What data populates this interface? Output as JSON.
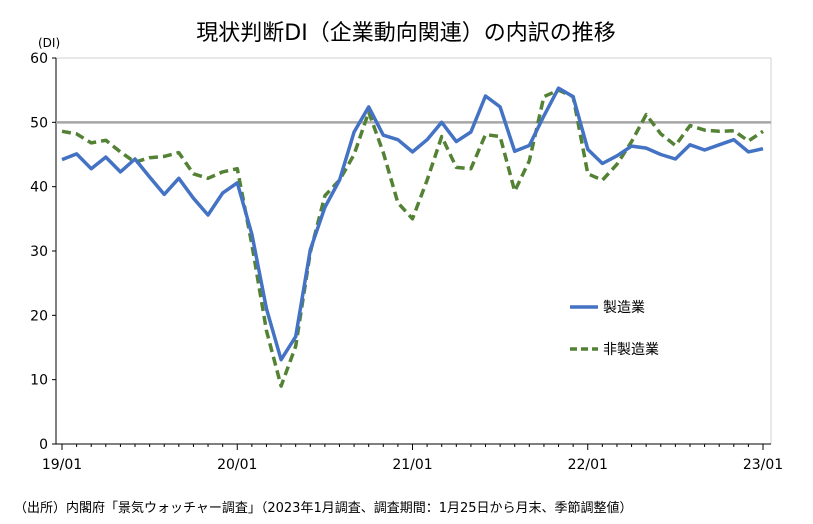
{
  "chart_data": {
    "type": "line",
    "title": "現状判断DI（企業動向関連）の内訳の推移",
    "y_unit": "(DI)",
    "ylim": [
      0,
      60
    ],
    "yticks": [
      0,
      10,
      20,
      30,
      40,
      50,
      60
    ],
    "x_tick_labels": [
      "19/01",
      "20/01",
      "21/01",
      "22/01",
      "23/01"
    ],
    "x_tick_index": [
      0,
      12,
      24,
      36,
      48
    ],
    "reference_line": 50,
    "source": "（出所）内閣府「景気ウォッチャー調査」（2023年1月調査、調査期間：1月25日から月末、季節調整値）",
    "series": [
      {
        "name": "製造業",
        "color": "#4472C4",
        "style": "solid",
        "values": [
          44.2,
          45.1,
          42.8,
          44.6,
          42.3,
          44.3,
          41.5,
          38.8,
          41.3,
          38.2,
          35.6,
          39.0,
          40.6,
          32.6,
          21.0,
          13.1,
          16.7,
          30.2,
          36.8,
          41.0,
          48.5,
          52.4,
          48.0,
          47.3,
          45.4,
          47.3,
          50.0,
          47.0,
          48.5,
          54.1,
          52.4,
          45.5,
          46.4,
          51.0,
          55.3,
          54.0,
          45.8,
          43.6,
          44.8,
          46.3,
          46.0,
          45.0,
          44.3,
          46.5,
          45.7,
          46.5,
          47.3,
          45.4,
          45.9
        ]
      },
      {
        "name": "非製造業",
        "color": "#548235",
        "style": "dashed",
        "values": [
          48.6,
          48.2,
          46.8,
          47.2,
          45.4,
          43.8,
          44.5,
          44.7,
          45.3,
          42.0,
          41.3,
          42.3,
          42.8,
          31.0,
          17.6,
          9.0,
          15.2,
          29.8,
          38.6,
          41.0,
          45.0,
          51.6,
          45.3,
          37.5,
          35.0,
          41.0,
          47.8,
          43.0,
          42.8,
          48.1,
          47.8,
          39.3,
          44.0,
          54.0,
          55.0,
          54.0,
          42.0,
          41.0,
          43.5,
          47.0,
          51.2,
          48.2,
          46.4,
          49.5,
          48.8,
          48.6,
          48.7,
          47.1,
          48.6
        ]
      }
    ],
    "legend": {
      "placement": "right-middle"
    },
    "grid": false
  }
}
